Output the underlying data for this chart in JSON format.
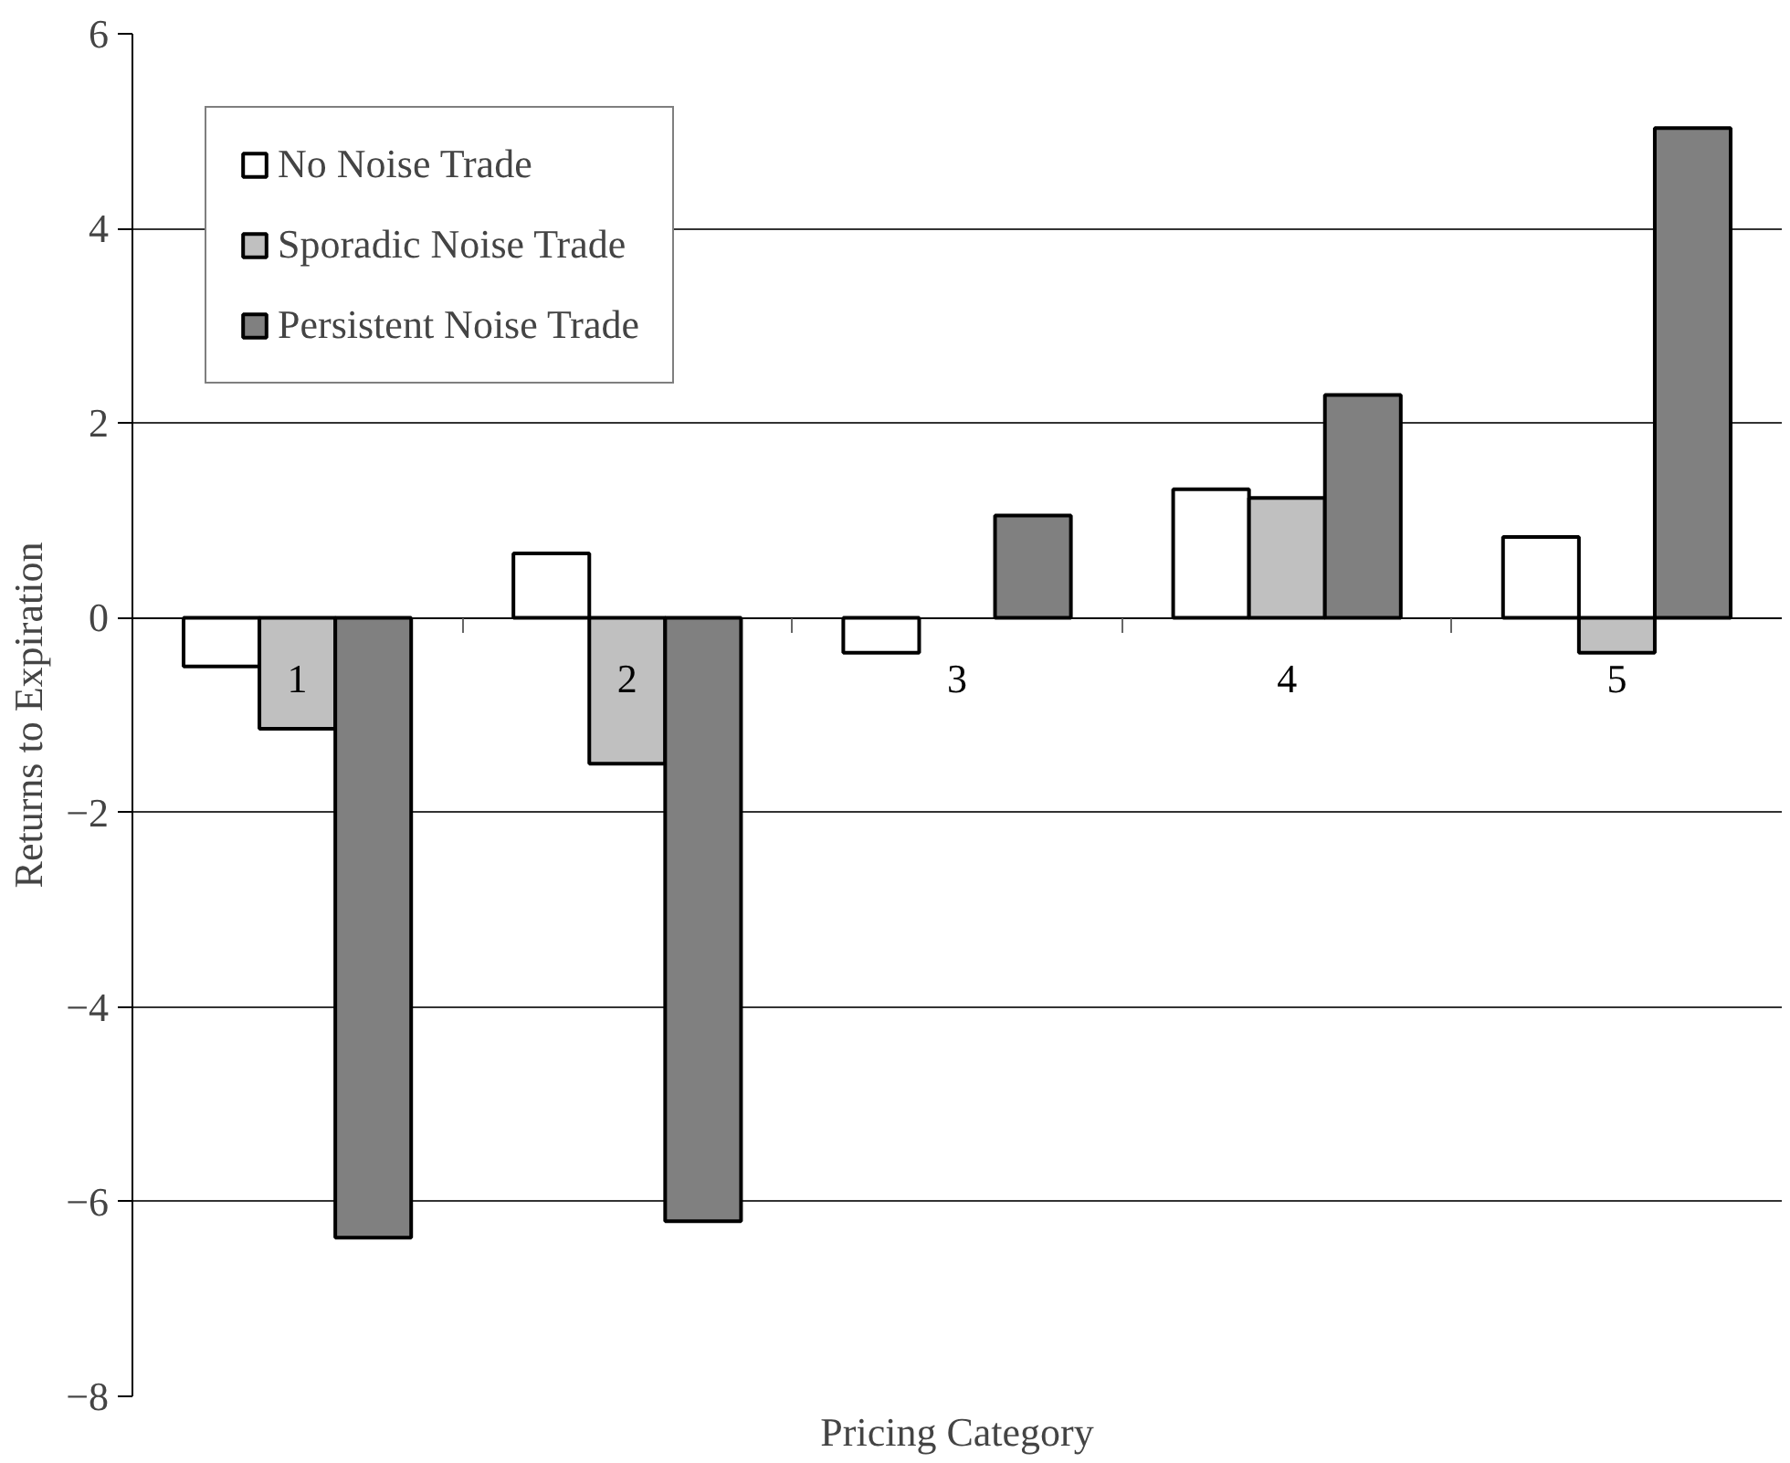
{
  "chart_data": {
    "type": "bar",
    "xlabel": "Pricing Category",
    "ylabel": "Returns to Expiration",
    "categories": [
      "1",
      "2",
      "3",
      "4",
      "5"
    ],
    "series": [
      {
        "name": "No Noise Trade",
        "color": "#ffffff",
        "values": [
          -0.5,
          0.66,
          -0.36,
          1.32,
          0.83
        ]
      },
      {
        "name": "Sporadic Noise Trade",
        "color": "#c0c0c0",
        "values": [
          -1.14,
          -1.5,
          null,
          1.23,
          -0.36
        ]
      },
      {
        "name": "Persistent Noise Trade",
        "color": "#808080",
        "values": [
          -6.37,
          -6.2,
          1.05,
          2.29,
          5.03
        ]
      }
    ],
    "ylim": [
      -8,
      6
    ],
    "yticks": [
      -8,
      -6,
      -4,
      -2,
      0,
      2,
      4,
      6
    ],
    "grid": "y",
    "legend": "top left"
  }
}
